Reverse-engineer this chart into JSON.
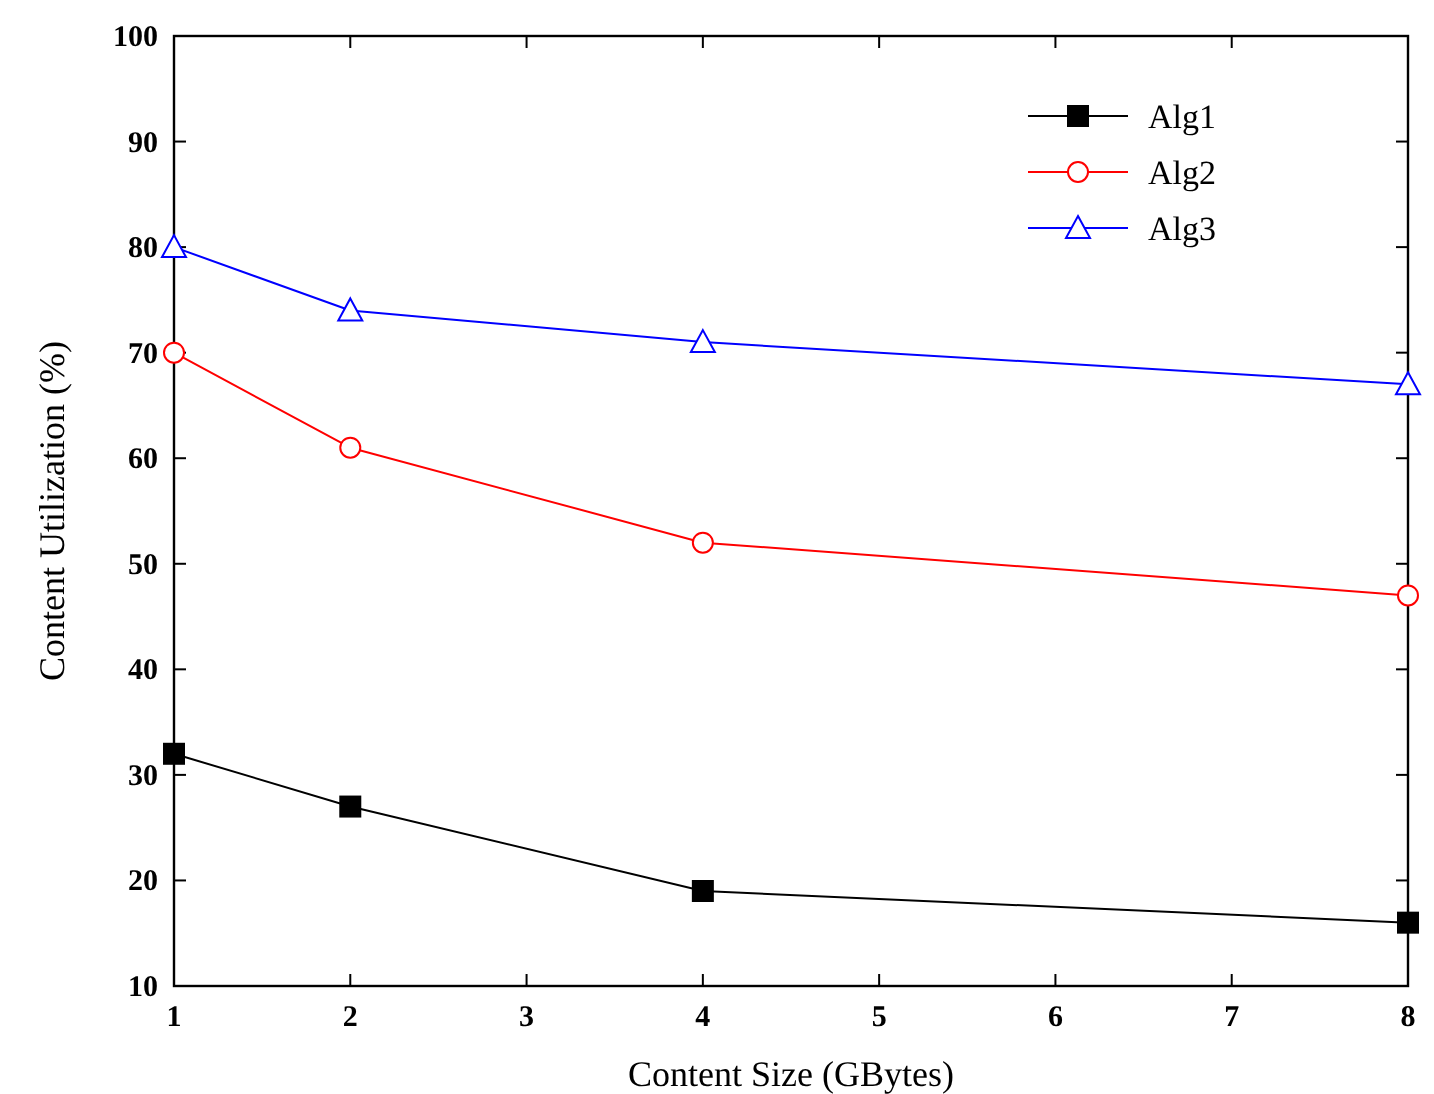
{
  "chart_data": {
    "type": "line",
    "xlabel": "Content Size (GBytes)",
    "ylabel": "Content Utilization (%)",
    "x": [
      1,
      2,
      4,
      8
    ],
    "xlim": [
      1,
      8
    ],
    "xticks": [
      1,
      2,
      3,
      4,
      5,
      6,
      7,
      8
    ],
    "ylim": [
      10,
      100
    ],
    "yticks": [
      10,
      20,
      30,
      40,
      50,
      60,
      70,
      80,
      90,
      100
    ],
    "legend": "top right",
    "grid": false,
    "series": [
      {
        "name": "Alg1",
        "color": "#000000",
        "marker": "square",
        "values": [
          32,
          27,
          19,
          16
        ]
      },
      {
        "name": "Alg2",
        "color": "#ff0000",
        "marker": "circle",
        "values": [
          70,
          61,
          52,
          47
        ]
      },
      {
        "name": "Alg3",
        "color": "#0000ff",
        "marker": "triangle",
        "values": [
          80,
          74,
          71,
          67
        ]
      }
    ]
  }
}
